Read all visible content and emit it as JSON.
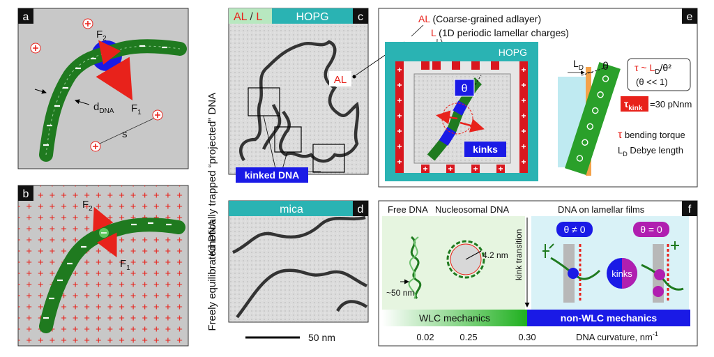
{
  "panels": {
    "a": {
      "label": "a",
      "f2": "F",
      "f2_sub": "2",
      "f1": "F",
      "f1_sub": "1",
      "ddna": "d",
      "ddna_sub": "DNA",
      "s": "s"
    },
    "b": {
      "label": "b",
      "f2": "F",
      "f2_sub": "2",
      "f1": "F",
      "f1_sub": "1"
    },
    "c": {
      "label": "c",
      "side_title": "Kinetically trapped “projected” DNA",
      "tag_al": "AL",
      "tag_sep": " / ",
      "tag_l": "L",
      "hopg": "HOPG",
      "al_label": "AL",
      "kinked": "kinked DNA"
    },
    "d": {
      "label": "d",
      "side_title": "Freely equilibrated DNA",
      "mica": "mica",
      "scale": "50 nm"
    },
    "e": {
      "label": "e",
      "al_legend_key": "AL",
      "al_legend_text": " (Coarse-grained adlayer)",
      "l_legend_key": "L",
      "l_legend_text": " (1D periodic lamellar charges)",
      "hopg": "HOPG",
      "theta": "θ",
      "kinks": "kinks",
      "ld": "L",
      "ld_sub": "D",
      "theta2": "θ",
      "tau_formula": "τ ~ L",
      "tau_formula_sub": "D",
      "tau_formula_rest": "/θ²",
      "tau_cond": "(θ << 1)",
      "tau_kink": "τ",
      "tau_kink_sub": "kink",
      "tau_kink_val": "=30 pNnm",
      "tau_sym": "τ",
      "tau_desc": " bending torque",
      "ld_def": "L",
      "ld_def_sub": "D",
      "ld_def_desc": "  Debye length"
    },
    "f": {
      "label": "f",
      "free": "Free DNA",
      "nucleo": "Nucleosomal DNA",
      "lamellar": "DNA on lamellar films",
      "theta_ne": "θ ≠ 0",
      "theta_eq": "θ = 0",
      "nm42": "4.2 nm",
      "nm50": "~50 nm",
      "kink_transition": "kink transition",
      "kinks": "kinks",
      "wlc": "WLC mechanics",
      "nonwlc": "non-WLC mechanics",
      "ticks": [
        "0.02",
        "0.25",
        "0.30"
      ],
      "axis": "DNA curvature, nm",
      "axis_sup": "-1"
    }
  },
  "colors": {
    "dna_green": "#1f7a1f",
    "force_red": "#e8221b",
    "teal": "#2ab3b3",
    "blue": "#1a1ae6",
    "purple": "#b01fb0",
    "grey_panel": "#c8c8c8"
  }
}
